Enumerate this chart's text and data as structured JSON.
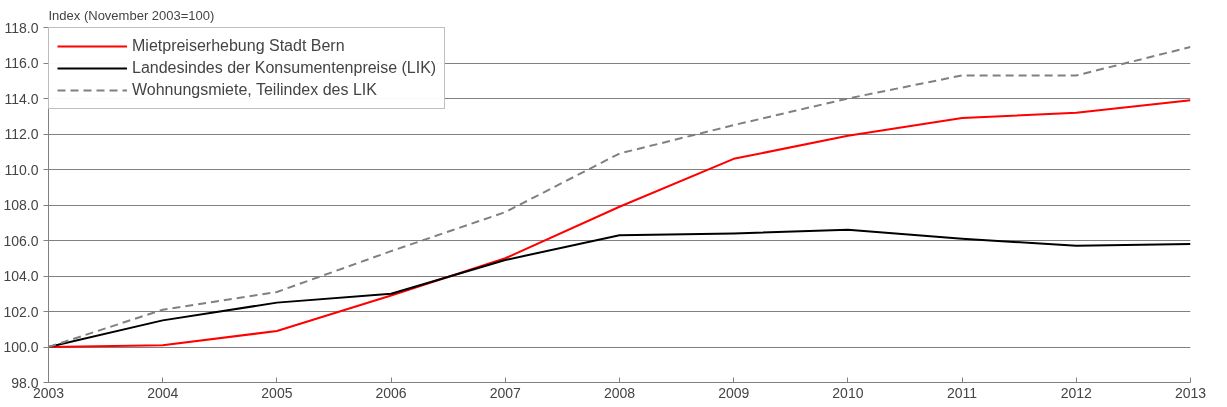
{
  "chart_data": {
    "type": "line",
    "ylabel": "Index (November 2003=100)",
    "x": [
      2003,
      2004,
      2005,
      2006,
      2007,
      2008,
      2009,
      2010,
      2011,
      2012,
      2013
    ],
    "series": [
      {
        "name": "Mietpreiserhebung Stadt Bern",
        "color": "#ff0000",
        "line_style": "solid",
        "values": [
          100.0,
          100.1,
          100.9,
          102.9,
          105.0,
          107.9,
          110.6,
          111.9,
          112.9,
          113.2,
          113.9
        ]
      },
      {
        "name": "Landesindes der Konsumentenpreise (LIK)",
        "color": "#000000",
        "line_style": "solid",
        "values": [
          100.0,
          101.5,
          102.5,
          103.0,
          104.9,
          106.3,
          106.4,
          106.6,
          106.1,
          105.7,
          105.8
        ]
      },
      {
        "name": "Wohnungsmiete, Teilindex des LIK",
        "color": "#808080",
        "line_style": "dashed",
        "values": [
          100.0,
          102.1,
          103.1,
          105.4,
          107.6,
          110.9,
          112.5,
          114.0,
          115.3,
          115.3,
          116.9
        ]
      }
    ],
    "xlim": [
      2003,
      2013
    ],
    "xticks": [
      2003,
      2004,
      2005,
      2006,
      2007,
      2008,
      2009,
      2010,
      2011,
      2012,
      2013
    ],
    "ylim": [
      98,
      118
    ],
    "yticks": [
      {
        "value": 98,
        "label": "98.0"
      },
      {
        "value": 100,
        "label": "100.0"
      },
      {
        "value": 102,
        "label": "102.0"
      },
      {
        "value": 104,
        "label": "104.0"
      },
      {
        "value": 106,
        "label": "106.0"
      },
      {
        "value": 108,
        "label": "108.0"
      },
      {
        "value": 110,
        "label": "110.0"
      },
      {
        "value": 112,
        "label": "112.0"
      },
      {
        "value": 114,
        "label": "114.0"
      },
      {
        "value": 116,
        "label": "116.0"
      },
      {
        "value": 118,
        "label": "118.0"
      }
    ],
    "grid": "y",
    "legend": "top left",
    "marker": "none"
  }
}
